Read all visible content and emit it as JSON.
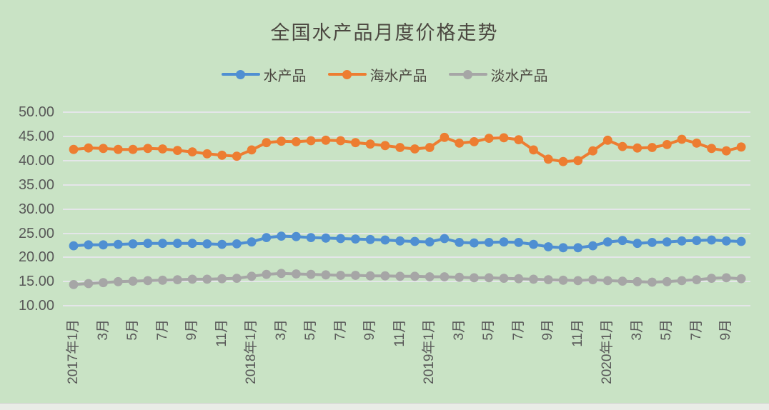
{
  "chart_data": {
    "type": "line",
    "title": "全国水产品月度价格走势",
    "xlabel": "",
    "ylabel": "",
    "ylim": [
      10,
      50
    ],
    "y_tick_labels": [
      "50.00",
      "45.00",
      "40.00",
      "35.00",
      "30.00",
      "25.00",
      "20.00",
      "15.00",
      "10.00"
    ],
    "grid": "horizontal",
    "legend_position": "top-center",
    "x_categories": [
      "2017年1月",
      "2017年2月",
      "2017年3月",
      "2017年4月",
      "2017年5月",
      "2017年6月",
      "2017年7月",
      "2017年8月",
      "2017年9月",
      "2017年10月",
      "2017年11月",
      "2017年12月",
      "2018年1月",
      "2018年2月",
      "2018年3月",
      "2018年4月",
      "2018年5月",
      "2018年6月",
      "2018年7月",
      "2018年8月",
      "2018年9月",
      "2018年10月",
      "2018年11月",
      "2018年12月",
      "2019年1月",
      "2019年2月",
      "2019年3月",
      "2019年4月",
      "2019年5月",
      "2019年6月",
      "2019年7月",
      "2019年8月",
      "2019年9月",
      "2019年10月",
      "2019年11月",
      "2019年12月",
      "2020年1月",
      "2020年2月",
      "2020年3月",
      "2020年4月",
      "2020年5月",
      "2020年6月",
      "2020年7月",
      "2020年8月",
      "2020年9月",
      "2020年10月"
    ],
    "x_tick_labels": [
      "2017年1月",
      "3月",
      "5月",
      "7月",
      "9月",
      "11月",
      "2018年1月",
      "3月",
      "5月",
      "7月",
      "9月",
      "11月",
      "2019年1月",
      "3月",
      "5月",
      "7月",
      "9月",
      "11月",
      "2020年1月",
      "3月",
      "5月",
      "7月",
      "9月"
    ],
    "x_tick_every": 2,
    "series": [
      {
        "name": "水产品",
        "color": "#4f8fd2",
        "values": [
          22.4,
          22.6,
          22.6,
          22.7,
          22.8,
          22.9,
          22.9,
          22.9,
          22.9,
          22.8,
          22.7,
          22.8,
          23.2,
          24.1,
          24.4,
          24.3,
          24.1,
          24.0,
          23.9,
          23.8,
          23.7,
          23.6,
          23.4,
          23.3,
          23.2,
          23.9,
          23.1,
          23.0,
          23.1,
          23.2,
          23.1,
          22.7,
          22.2,
          22.0,
          22.0,
          22.4,
          23.2,
          23.5,
          22.9,
          23.1,
          23.2,
          23.4,
          23.5,
          23.6,
          23.4,
          23.3
        ]
      },
      {
        "name": "海水产品",
        "color": "#ED7D31",
        "values": [
          42.3,
          42.6,
          42.5,
          42.3,
          42.3,
          42.5,
          42.4,
          42.1,
          41.8,
          41.4,
          41.1,
          40.9,
          42.2,
          43.7,
          44.0,
          43.9,
          44.1,
          44.2,
          44.1,
          43.7,
          43.4,
          43.1,
          42.7,
          42.4,
          42.7,
          44.8,
          43.6,
          43.9,
          44.6,
          44.7,
          44.3,
          42.2,
          40.3,
          39.8,
          40.0,
          42.0,
          44.2,
          42.9,
          42.6,
          42.7,
          43.3,
          44.4,
          43.6,
          42.5,
          42.0,
          42.8
        ]
      },
      {
        "name": "淡水产品",
        "color": "#A6A6A6",
        "values": [
          14.4,
          14.6,
          14.8,
          15.0,
          15.1,
          15.2,
          15.3,
          15.4,
          15.5,
          15.5,
          15.6,
          15.7,
          16.1,
          16.5,
          16.7,
          16.6,
          16.5,
          16.4,
          16.3,
          16.3,
          16.2,
          16.2,
          16.1,
          16.1,
          16.0,
          16.0,
          15.9,
          15.8,
          15.8,
          15.7,
          15.6,
          15.5,
          15.4,
          15.3,
          15.2,
          15.4,
          15.2,
          15.1,
          15.0,
          14.9,
          15.0,
          15.2,
          15.4,
          15.7,
          15.8,
          15.6
        ]
      }
    ]
  },
  "colors": {
    "background": "#c9e3c5",
    "gridline": "#e9e6ee",
    "axis_text": "#595959",
    "title_text": "#4c4841",
    "series_blue": "#4f8fd2",
    "series_orange": "#ED7D31",
    "series_gray": "#A6A6A6"
  }
}
